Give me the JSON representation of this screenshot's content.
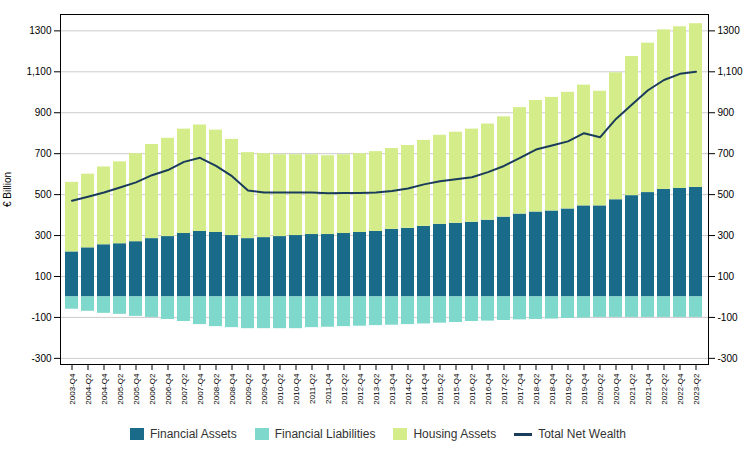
{
  "chart_data": {
    "type": "bar",
    "stacked": true,
    "ylabel": "€ Billion",
    "categories": [
      "2003-Q4",
      "2004-Q2",
      "2004-Q4",
      "2005-Q2",
      "2005-Q4",
      "2006-Q2",
      "2006-Q4",
      "2007-Q2",
      "2007-Q4",
      "2008-Q2",
      "2008-Q4",
      "2009-Q2",
      "2009-Q4",
      "2010-Q2",
      "2010-Q4",
      "2011-Q2",
      "2011-Q4",
      "2012-Q2",
      "2012-Q4",
      "2013-Q2",
      "2013-Q4",
      "2014-Q2",
      "2014-Q4",
      "2015-Q2",
      "2015-Q4",
      "2016-Q2",
      "2016-Q4",
      "2017-Q2",
      "2017-Q4",
      "2018-Q2",
      "2018-Q4",
      "2019-Q2",
      "2019-Q4",
      "2020-Q2",
      "2020-Q4",
      "2021-Q2",
      "2021-Q4",
      "2022-Q2",
      "2022-Q4",
      "2023-Q2"
    ],
    "series": [
      {
        "name": "Financial Assets",
        "type": "bar",
        "color": "#1a6b8a",
        "values": [
          220,
          240,
          255,
          260,
          270,
          285,
          295,
          310,
          320,
          315,
          300,
          285,
          290,
          295,
          300,
          305,
          305,
          310,
          315,
          320,
          330,
          335,
          345,
          355,
          360,
          365,
          375,
          390,
          405,
          415,
          420,
          430,
          445,
          445,
          475,
          495,
          510,
          525,
          530,
          535
        ]
      },
      {
        "name": "Financial Liabilities",
        "type": "bar",
        "color": "#7fd8cc",
        "values": [
          -60,
          -70,
          -80,
          -85,
          -95,
          -100,
          -110,
          -120,
          -135,
          -145,
          -150,
          -155,
          -155,
          -155,
          -155,
          -150,
          -148,
          -145,
          -143,
          -140,
          -138,
          -135,
          -132,
          -128,
          -125,
          -120,
          -118,
          -115,
          -112,
          -110,
          -108,
          -105,
          -103,
          -100,
          -100,
          -100,
          -100,
          -100,
          -100,
          -100
        ]
      },
      {
        "name": "Housing Assets",
        "type": "bar",
        "color": "#d4ed8a",
        "values": [
          340,
          360,
          380,
          400,
          430,
          460,
          480,
          510,
          520,
          500,
          470,
          420,
          410,
          400,
          395,
          390,
          385,
          385,
          385,
          390,
          395,
          405,
          420,
          435,
          445,
          455,
          470,
          490,
          520,
          545,
          555,
          570,
          590,
          560,
          620,
          680,
          730,
          780,
          790,
          800
        ]
      },
      {
        "name": "Total Net Wealth",
        "type": "line",
        "color": "#1a3c5a",
        "values": [
          470,
          490,
          510,
          535,
          560,
          595,
          620,
          660,
          680,
          640,
          590,
          520,
          510,
          510,
          510,
          510,
          507,
          508,
          508,
          510,
          518,
          530,
          550,
          565,
          575,
          585,
          610,
          640,
          680,
          720,
          740,
          760,
          800,
          780,
          870,
          940,
          1010,
          1060,
          1090,
          1100
        ]
      }
    ],
    "ylim": [
      -330,
      1380
    ],
    "yticks": [
      -300,
      -100,
      100,
      300,
      500,
      700,
      900,
      {
        "value": 1100,
        "label": "1,100"
      },
      1300
    ],
    "y2lim": [
      -330,
      1380
    ],
    "y2ticks": [
      -300,
      -100,
      100,
      300,
      500,
      700,
      900,
      {
        "value": 1100,
        "label": "1,100"
      },
      1300
    ],
    "grid": true,
    "legend": "bottom"
  }
}
